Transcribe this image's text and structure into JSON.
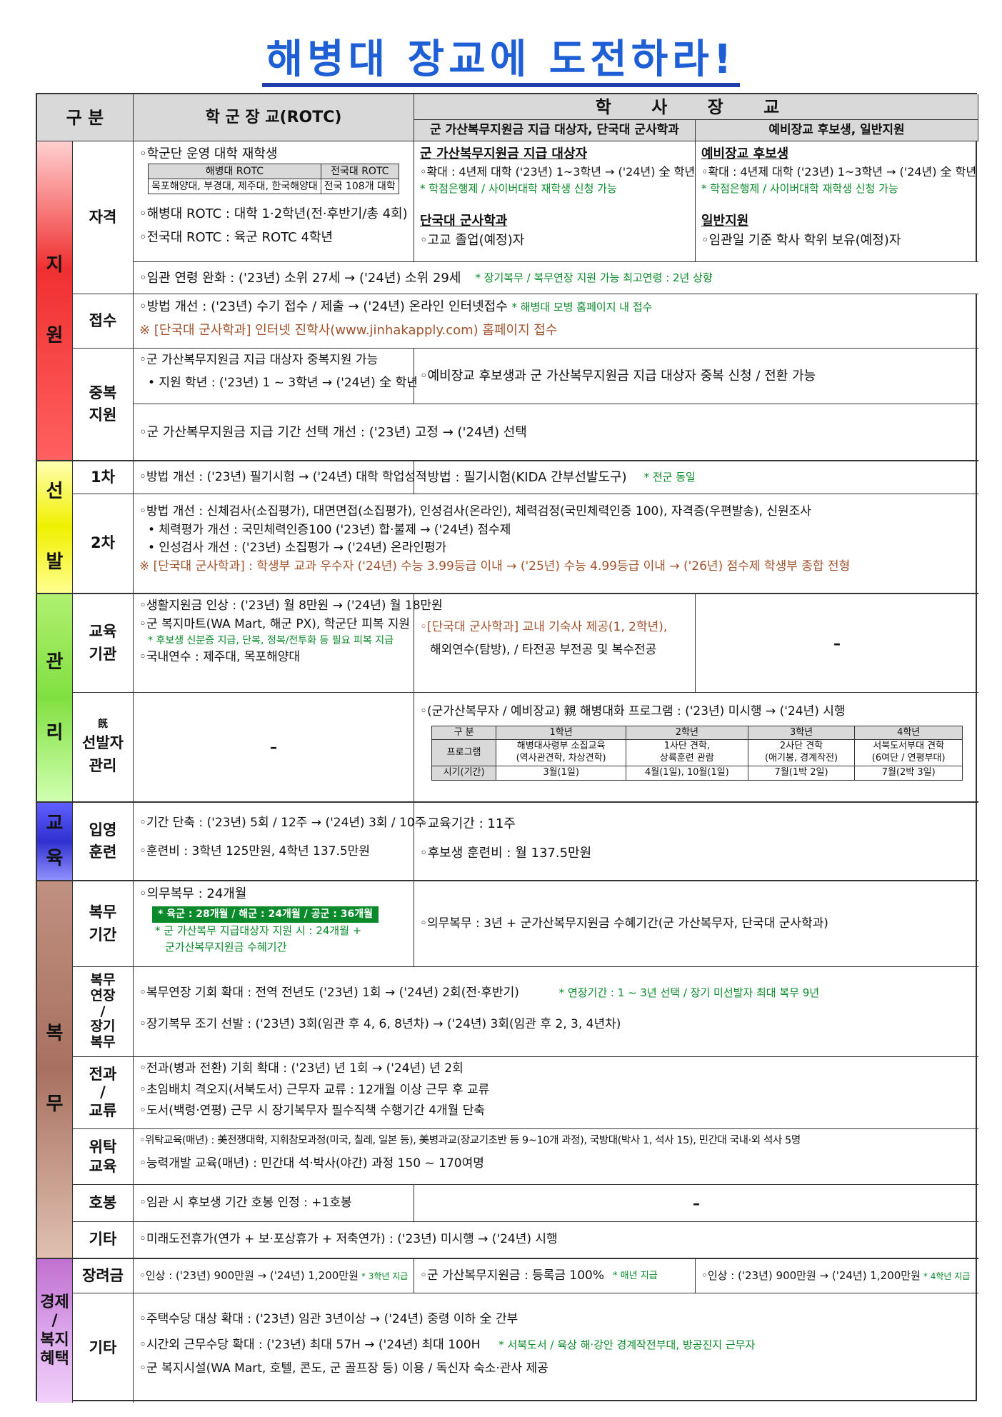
{
  "title": "해병대 장교에 도전하라!",
  "header": {
    "category": "구 분",
    "rotc": "학 군 장 교(ROTC)",
    "academy": "학 사 장 교",
    "academy_a": "군 가산복무지원금 지급 대상자, 단국대 군사학과",
    "academy_b": "예비장교 후보생, 일반지원"
  },
  "sections": {
    "apply": "지\n\n원",
    "select": "선\n\n발",
    "manage": "관\n\n리",
    "edu": "교\n육",
    "serve": "복\n\n무",
    "welfare": "경제\n/\n복지\n혜택"
  },
  "colors": {
    "apply": "#f03030",
    "select": "#e6e600",
    "manage": "#80e040",
    "edu": "#4040e0",
    "serve": "#a87060",
    "welfare": "#c080d0"
  },
  "rows": {
    "qual": {
      "label": "자격",
      "rotc_l1": "◦학군단 운영 대학 재학생",
      "tbl_h1": "해병대 ROTC",
      "tbl_h2": "전국대 ROTC",
      "tbl_d1": "목포해양대, 부경대, 제주대, 한국해양대",
      "tbl_d2": "전국 108개 대학",
      "rotc_l2": "◦해병대 ROTC : 대학 1·2학년(전·후반기/총 4회)",
      "rotc_l3": "◦전국대 ROTC : 육군 ROTC 4학년",
      "a_h": "군 가산복무지원금 지급 대상자",
      "a_l1": "◦확대 : 4년제 대학 ('23년) 1~3학년 → ('24년) 全 학년",
      "a_l2": "* 학점은행제 / 사이버대학 재학생 신청 가능",
      "a_h2": "단국대 군사학과",
      "a_l3": "◦고교 졸업(예정)자",
      "b_h": "예비장교 후보생",
      "b_l1": "◦확대 : 4년제 대학 ('23년) 1~3학년 → ('24년) 全 학년",
      "b_l2": "* 학점은행제 / 사이버대학 재학생 신청 가능",
      "b_h2": "일반지원",
      "b_l3": "◦임관일 기준 학사 학위 보유(예정)자",
      "age": "◦임관 연령 완화 : ('23년) 소위 27세 → ('24년) 소위 29세",
      "age_note": "* 장기복무 / 복무연장 지원 가능 최고연령 : 2년 상향"
    },
    "recv": {
      "label": "접수",
      "l1": "◦방법 개선 : ('23년) 수기 접수 / 제출 → ('24년) 온라인 인터넷접수",
      "l1_note": "* 해병대 모병 홈페이지 내 접수",
      "l2": "※ [단국대 군사학과] 인터넷 진학사(www.jinhakapply.com) 홈페이지 접수"
    },
    "dup": {
      "label": "중복\n지원",
      "l1": "◦군 가산복무지원금 지급 대상자 중복지원 가능",
      "l2": "• 지원 학년 : ('23년) 1 ~ 3학년 → ('24년) 全 학년",
      "r1": "◦예비장교 후보생과 군 가산복무지원금 지급 대상자 중복 신청 / 전환 가능",
      "l3": "◦군 가산복무지원금 지급 기간 선택 개선 : ('23년) 고정 → ('24년) 선택"
    },
    "sel1": {
      "label": "1차",
      "l1": "◦방법 개선 : ('23년) 필기시험 → ('24년) 대학 학업성적",
      "r1": "◦방법 : 필기시험(KIDA 간부선발도구)",
      "r1_note": "* 전군 동일"
    },
    "sel2": {
      "label": "2차",
      "l1": "◦방법 개선 : 신체검사(소집평가), 대면면접(소집평가), 인성검사(온라인), 체력검정(국민체력인증 100), 자격증(우편발송), 신원조사",
      "l2": "• 체력평가 개선 : 국민체력인증100 ('23년) 합·불제 → ('24년) 점수제",
      "l3": "• 인성검사 개선 : ('23년) 소집평가 → ('24년) 온라인평가",
      "l4": "※ [단국대 군사학과] : 학생부 교과 우수자 ('24년) 수능 3.99등급 이내 → ('25년) 수능 4.99등급 이내 → ('26년) 점수제 학생부 종합 전형"
    },
    "edu_org": {
      "label": "교육\n기관",
      "l1": "◦생활지원금 인상 : ('23년) 월 8만원 → ('24년) 월 18만원",
      "l2": "◦군 복지마트(WA Mart, 해군 PX), 학군단 피복 지원",
      "l3": "* 후보생 신분증 지급, 단복, 정복/전투화 등 필요 피복 지급",
      "l4": "◦국내연수 : 제주대, 목포해양대",
      "m1": "◦[단국대 군사학과] 교내 기숙사 제공(1, 2학년),",
      "m2": "해외연수(탐방), / 타전공 부전공 및 복수전공",
      "r1": "–"
    },
    "mgmt": {
      "label_small": "旣",
      "label": "선발자\n관리",
      "l1": "–",
      "r1": "◦(군가산복무자 / 예비장교) 親 해병대화 프로그램 : ('23년) 미시행 → ('24년) 시행",
      "tbl_head": [
        "구 분",
        "1학년",
        "2학년",
        "3학년",
        "4학년"
      ],
      "tbl_prog": [
        "프로그램",
        "해병대사령부 소집교육\n(역사관견학, 차상견학)",
        "1사단 견학,\n상륙훈련 관람",
        "2사단 견학\n(애기봉, 경계작전)",
        "서북도서부대 견학\n(6여단 / 연평부대)"
      ],
      "tbl_time": [
        "시기(기간)",
        "3월(1일)",
        "4월(1일), 10월(1일)",
        "7월(1박 2일)",
        "7월(2박 3일)"
      ]
    },
    "train": {
      "label": "입영\n훈련",
      "l1": "◦기간 단축 : ('23년) 5회 / 12주 → ('24년) 3회 / 10주",
      "l2": "◦훈련비 : 3학년 125만원, 4학년 137.5만원",
      "r1": "◦교육기간 : 11주",
      "r2": "◦후보생 훈련비 : 월 137.5만원"
    },
    "duty": {
      "label": "복무\n기간",
      "l1": "◦의무복무 : 24개월",
      "l2": "* 육군 : 28개월 / 해군 : 24개월 / 공군 : 36개월",
      "l3": "* 군 가산복무 지급대상자 지원 시 : 24개월 +",
      "l4": "군가산복무지원금 수혜기간",
      "r1": "◦의무복무 : 3년 + 군가산복무지원금 수혜기간(군 가산복무자, 단국대 군사학과)"
    },
    "extend": {
      "label": "복무\n연장\n/\n장기\n복무",
      "l1": "◦복무연장 기회 확대 : 전역 전년도 ('23년) 1회 → ('24년) 2회(전·후반기)",
      "l1_note": "* 연장기간 : 1 ~ 3년 선택 / 장기 미선발자 최대 복무 9년",
      "l2": "◦장기복무 조기 선발 : ('23년) 3회(임관 후 4, 6, 8년차) → ('24년) 3회(임관 후 2, 3, 4년차)"
    },
    "transfer": {
      "label": "전과\n/\n교류",
      "l1": "◦전과(병과 전환) 기회 확대 : ('23년) 년 1회 → ('24년) 년 2회",
      "l2": "◦초임배치 격오지(서북도서) 근무자 교류 : 12개월 이상 근무 후 교류",
      "l3": "◦도서(백령·연평) 근무 시 장기복무자 필수직책 수행기간 4개월 단축"
    },
    "consign": {
      "label": "위탁\n교육",
      "l1": "◦위탁교육(매년) : 美전쟁대학, 지휘참모과정(미국, 칠레, 일본 등), 美병과교(장교기초반 등 9~10개 과정), 국방대(박사 1, 석사 15), 민간대 국내·외 석사 5명",
      "l2": "◦능력개발 교육(매년) : 민간대 석·박사(야간) 과정 150 ~ 170여명"
    },
    "rank": {
      "label": "호봉",
      "l1": "◦임관 시 후보생 기간 호봉 인정 : +1호봉",
      "r1": "–"
    },
    "etc": {
      "label": "기타",
      "l1": "◦미래도전휴가(연가 + 보·포상휴가 + 저축연가) : ('23년) 미시행 → ('24년) 시행"
    },
    "scholar": {
      "label": "장려금",
      "l1": "◦인상 : ('23년) 900만원 → ('24년) 1,200만원",
      "l1_note": "* 3학년 지급",
      "m1": "◦군 가산복무지원금 : 등록금 100%",
      "m1_note": "* 매년 지급",
      "r1": "◦인상 : ('23년) 900만원 → ('24년) 1,200만원",
      "r1_note": "* 4학년 지급"
    },
    "welfare_etc": {
      "label": "기타",
      "l1": "◦주택수당 대상 확대 : ('23년) 임관 3년이상 → ('24년) 중령 이하 全 간부",
      "l2": "◦시간외 근무수당 확대 : ('23년) 최대 57H → ('24년) 최대 100H",
      "l2_note": "* 서북도서 / 육상 해·강안 경계작전부대, 방공진지 근무자",
      "l3": "◦군 복지시설(WA Mart, 호텔, 콘도, 군 골프장 등) 이용 / 독신자 숙소·관사 제공"
    }
  }
}
